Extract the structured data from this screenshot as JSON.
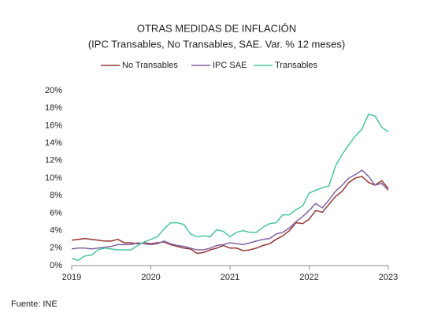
{
  "chart_data": {
    "type": "line",
    "title": "OTRAS MEDIDAS DE INFLACIÓN",
    "subtitle": "(IPC Transables, No Transables, SAE.  Var. % 12 meses)",
    "source": "Fuente: INE",
    "x": [
      2019,
      2019.083,
      2019.167,
      2019.25,
      2019.333,
      2019.417,
      2019.5,
      2019.583,
      2019.667,
      2019.75,
      2019.833,
      2019.917,
      2020,
      2020.083,
      2020.167,
      2020.25,
      2020.333,
      2020.417,
      2020.5,
      2020.583,
      2020.667,
      2020.75,
      2020.833,
      2020.917,
      2021,
      2021.083,
      2021.167,
      2021.25,
      2021.333,
      2021.417,
      2021.5,
      2021.583,
      2021.667,
      2021.75,
      2021.833,
      2021.917,
      2022,
      2022.083,
      2022.167,
      2022.25,
      2022.333,
      2022.417,
      2022.5,
      2022.583,
      2022.667,
      2022.75,
      2022.833,
      2022.917,
      2023
    ],
    "series": [
      {
        "name": "No Transables",
        "color": "#953735",
        "values": [
          2.9,
          3.0,
          3.1,
          3.0,
          2.9,
          2.8,
          2.8,
          3.0,
          2.6,
          2.6,
          2.5,
          2.6,
          2.5,
          2.6,
          2.7,
          2.4,
          2.2,
          2.0,
          1.9,
          1.4,
          1.5,
          1.8,
          2.0,
          2.3,
          2.0,
          2.0,
          1.7,
          1.8,
          2.0,
          2.3,
          2.5,
          3.0,
          3.4,
          4.0,
          4.9,
          4.8,
          5.3,
          6.3,
          6.1,
          7.0,
          7.9,
          8.5,
          9.5,
          10.0,
          10.2,
          9.5,
          9.2,
          9.7,
          8.8
        ]
      },
      {
        "name": "IPC SAE",
        "color": "#8064a2",
        "values": [
          1.9,
          2.0,
          2.0,
          1.9,
          2.0,
          2.1,
          2.2,
          2.4,
          2.4,
          2.4,
          2.6,
          2.5,
          2.4,
          2.5,
          2.8,
          2.5,
          2.3,
          2.2,
          2.0,
          1.8,
          1.8,
          2.0,
          2.3,
          2.4,
          2.6,
          2.5,
          2.4,
          2.6,
          2.8,
          3.0,
          3.1,
          3.6,
          3.8,
          4.3,
          5.0,
          5.6,
          6.3,
          7.1,
          6.6,
          7.5,
          8.5,
          9.2,
          10.0,
          10.4,
          10.9,
          10.2,
          9.2,
          9.4,
          8.6
        ]
      },
      {
        "name": "Transables",
        "color": "#4bc59b",
        "values": [
          0.8,
          0.6,
          1.1,
          1.2,
          1.8,
          2.0,
          1.9,
          1.8,
          1.8,
          1.8,
          2.3,
          2.7,
          3.0,
          3.3,
          4.2,
          4.9,
          4.9,
          4.7,
          3.6,
          3.3,
          3.4,
          3.3,
          4.1,
          3.9,
          3.3,
          3.8,
          4.0,
          3.8,
          3.8,
          4.4,
          4.8,
          4.9,
          5.8,
          5.8,
          6.4,
          6.8,
          8.3,
          8.6,
          8.9,
          9.1,
          11.4,
          12.7,
          13.8,
          14.8,
          15.6,
          17.3,
          17.1,
          15.8,
          15.3
        ]
      }
    ],
    "xlim": [
      2019,
      2023
    ],
    "xticks": [
      2019,
      2020,
      2021,
      2022,
      2023
    ],
    "ylim": [
      0,
      20
    ],
    "yticks": [
      {
        "value": 0,
        "label": "0%"
      },
      {
        "value": 2,
        "label": "2%"
      },
      {
        "value": 4,
        "label": "4%"
      },
      {
        "value": 6,
        "label": "6%"
      },
      {
        "value": 8,
        "label": "8%"
      },
      {
        "value": 10,
        "label": "10%"
      },
      {
        "value": 12,
        "label": "12%"
      },
      {
        "value": 14,
        "label": "14%"
      },
      {
        "value": 16,
        "label": "16%"
      },
      {
        "value": 18,
        "label": "18%"
      },
      {
        "value": 20,
        "label": "20%"
      }
    ],
    "grid": false,
    "legend": "top"
  }
}
